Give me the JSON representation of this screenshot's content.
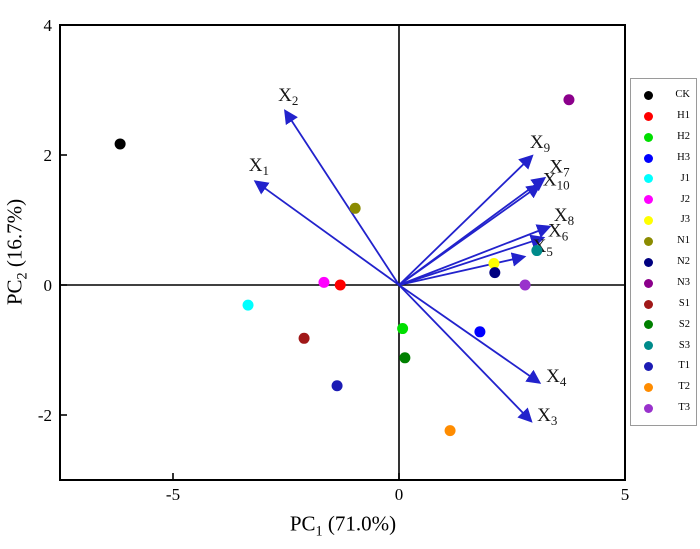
{
  "figure": {
    "xlabel": {
      "prefix": "PC",
      "sub": "1",
      "suffix": " (71.0%)"
    },
    "ylabel": {
      "prefix": "PC",
      "sub": "2",
      "suffix": " (16.7%)"
    }
  },
  "chart_data": {
    "type": "scatter",
    "title": "",
    "xlabel": "PC1 (71.0%)",
    "ylabel": "PC2 (16.7%)",
    "xlim": [
      -7.5,
      5
    ],
    "ylim": [
      -3,
      4
    ],
    "xticks": [
      -5,
      0,
      5
    ],
    "yticks": [
      -2,
      0,
      2,
      4
    ],
    "grid": false,
    "legend_position": "right-outside",
    "axis_color": "#000000",
    "vector_color": "#2222CC",
    "vector_label_prefix": "X",
    "samples": [
      {
        "label": "CK",
        "color": "#000000",
        "x": -6.17,
        "y": 2.17
      },
      {
        "label": "H1",
        "color": "#FF0000",
        "x": -1.3,
        "y": 0.0
      },
      {
        "label": "H2",
        "color": "#00DF00",
        "x": 0.08,
        "y": -0.67
      },
      {
        "label": "H3",
        "color": "#0000FF",
        "x": 1.79,
        "y": -0.72
      },
      {
        "label": "J1",
        "color": "#00FFFF",
        "x": -3.34,
        "y": -0.31
      },
      {
        "label": "J2",
        "color": "#FF00FF",
        "x": -1.66,
        "y": 0.04
      },
      {
        "label": "J3",
        "color": "#FFFF00",
        "x": 2.1,
        "y": 0.33
      },
      {
        "label": "N1",
        "color": "#8B8B00",
        "x": -0.97,
        "y": 1.18
      },
      {
        "label": "N2",
        "color": "#000080",
        "x": 2.12,
        "y": 0.19
      },
      {
        "label": "N3",
        "color": "#8B008B",
        "x": 3.76,
        "y": 2.85
      },
      {
        "label": "S1",
        "color": "#A01818",
        "x": -2.1,
        "y": -0.82
      },
      {
        "label": "S2",
        "color": "#008000",
        "x": 0.13,
        "y": -1.12
      },
      {
        "label": "S3",
        "color": "#008B8B",
        "x": 3.05,
        "y": 0.53
      },
      {
        "label": "T1",
        "color": "#1C1CB4",
        "x": -1.37,
        "y": -1.55
      },
      {
        "label": "T2",
        "color": "#FF8C00",
        "x": 1.13,
        "y": -2.24
      },
      {
        "label": "T3",
        "color": "#9932CC",
        "x": 2.79,
        "y": 0.0
      }
    ],
    "vectors": [
      {
        "sub": "1",
        "x": -3.15,
        "y": 1.58,
        "lx": -3.1,
        "ly": 1.85
      },
      {
        "sub": "2",
        "x": -2.5,
        "y": 2.66,
        "lx": -2.45,
        "ly": 2.92
      },
      {
        "sub": "3",
        "x": 2.9,
        "y": -2.08,
        "lx": 3.28,
        "ly": -2.0
      },
      {
        "sub": "4",
        "x": 3.08,
        "y": -1.49,
        "lx": 3.48,
        "ly": -1.4
      },
      {
        "sub": "5",
        "x": 2.74,
        "y": 0.43,
        "lx": 3.18,
        "ly": 0.6
      },
      {
        "sub": "6",
        "x": 3.16,
        "y": 0.72,
        "lx": 3.52,
        "ly": 0.84
      },
      {
        "sub": "7",
        "x": 3.19,
        "y": 1.63,
        "lx": 3.55,
        "ly": 1.82
      },
      {
        "sub": "8",
        "x": 3.3,
        "y": 0.89,
        "lx": 3.65,
        "ly": 1.08
      },
      {
        "sub": "9",
        "x": 2.92,
        "y": 1.97,
        "lx": 3.12,
        "ly": 2.2
      },
      {
        "sub": "10",
        "x": 3.08,
        "y": 1.52,
        "lx": 3.48,
        "ly": 1.62
      }
    ]
  }
}
